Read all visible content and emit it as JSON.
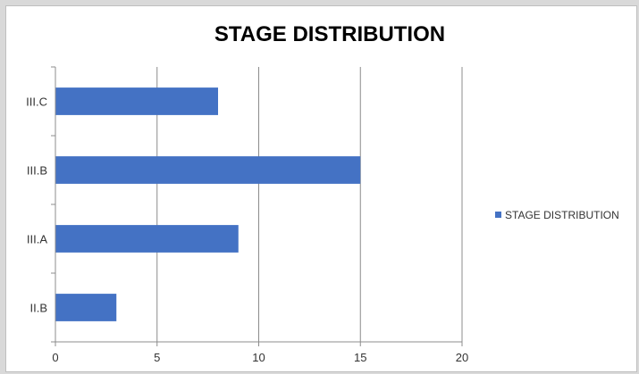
{
  "chart_data": {
    "type": "bar",
    "orientation": "horizontal",
    "title": "STAGE DISTRIBUTION",
    "categories": [
      "II.B",
      "III.A",
      "III.B",
      "III.C"
    ],
    "series": [
      {
        "name": "STAGE DISTRIBUTION",
        "values": [
          3,
          9,
          15,
          8
        ],
        "color": "#4472c4"
      }
    ],
    "xlim": [
      0,
      20
    ],
    "xticks": [
      0,
      5,
      10,
      15,
      20
    ],
    "grid": "vertical",
    "legend_position": "right"
  }
}
